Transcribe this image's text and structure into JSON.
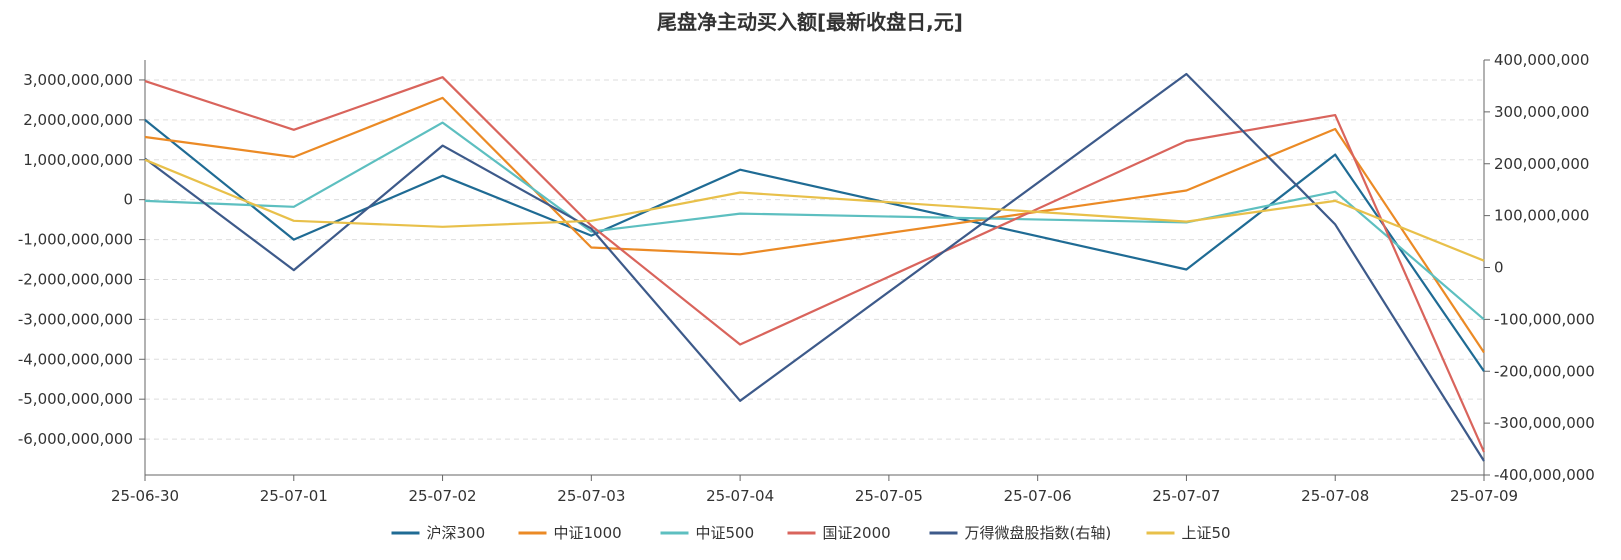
{
  "chart_data": {
    "type": "line",
    "title": "尾盘净主动买入额[最新收盘日,元]",
    "categories": [
      "25-06-30",
      "25-07-01",
      "25-07-02",
      "25-07-03",
      "25-07-04",
      "25-07-05",
      "25-07-06",
      "25-07-07",
      "25-07-08",
      "25-07-09"
    ],
    "left_axis": {
      "ylim": [
        -6900000000,
        3500000000
      ],
      "ticks": [
        3000000000,
        2000000000,
        1000000000,
        0,
        -1000000000,
        -2000000000,
        -3000000000,
        -4000000000,
        -5000000000,
        -6000000000
      ],
      "tick_labels": [
        "3,000,000,000",
        "2,000,000,000",
        "1,000,000,000",
        "0",
        "-1,000,000,000",
        "-2,000,000,000",
        "-3,000,000,000",
        "-4,000,000,000",
        "-5,000,000,000",
        "-6,000,000,000"
      ]
    },
    "right_axis": {
      "ylim": [
        -400000000,
        400000000
      ],
      "ticks": [
        400000000,
        300000000,
        200000000,
        100000000,
        0,
        -100000000,
        -200000000,
        -300000000,
        -400000000
      ],
      "tick_labels": [
        "400,000,000",
        "300,000,000",
        "200,000,000",
        "100,000,000",
        "0",
        "-100,000,000",
        "-200,000,000",
        "-300,000,000",
        "-400,000,000"
      ]
    },
    "grid": true,
    "legend_position": "bottom",
    "series": [
      {
        "name": "沪深300",
        "axis": "left",
        "color": "#1f6b94",
        "values": [
          2000000000,
          -1000000000,
          600000000,
          -900000000,
          750000000,
          null,
          null,
          -1750000000,
          1130000000,
          -4300000000
        ]
      },
      {
        "name": "中证1000",
        "axis": "left",
        "color": "#eb8a25",
        "values": [
          1570000000,
          1070000000,
          2550000000,
          -1200000000,
          -1370000000,
          null,
          null,
          230000000,
          1770000000,
          -3830000000
        ]
      },
      {
        "name": "中证500",
        "axis": "left",
        "color": "#5dbfc0",
        "values": [
          -30000000,
          -180000000,
          1930000000,
          -800000000,
          -350000000,
          null,
          null,
          -570000000,
          200000000,
          -3000000000
        ]
      },
      {
        "name": "国证2000",
        "axis": "left",
        "color": "#d9645c",
        "values": [
          2970000000,
          1750000000,
          3070000000,
          -650000000,
          -3630000000,
          null,
          null,
          1470000000,
          2120000000,
          -6320000000
        ]
      },
      {
        "name": "万得微盘股指数(右轴)",
        "axis": "right",
        "color": "#3d5a8a",
        "values": [
          210000000,
          -5000000,
          235000000,
          75000000,
          -257000000,
          null,
          null,
          373000000,
          83000000,
          -373000000
        ]
      },
      {
        "name": "上证50",
        "axis": "left",
        "color": "#e8c04a",
        "values": [
          1000000000,
          -530000000,
          -680000000,
          -530000000,
          180000000,
          null,
          null,
          -550000000,
          -30000000,
          -1530000000
        ]
      }
    ]
  }
}
